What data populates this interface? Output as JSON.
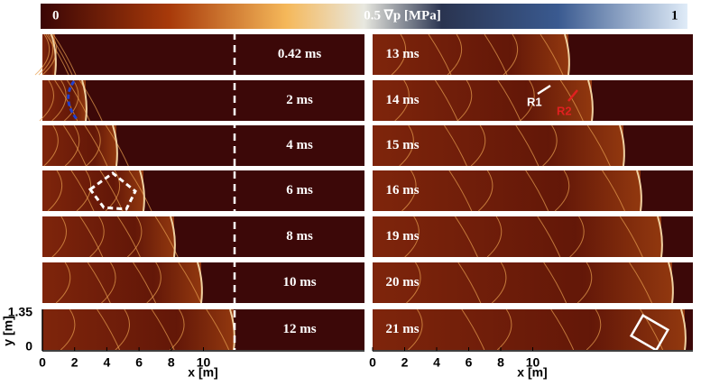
{
  "colorbar": {
    "min_label": "0",
    "mid_label": "0.5 ∇p [MPa]",
    "max_label": "1"
  },
  "left_panels": [
    {
      "time": "0.42 ms"
    },
    {
      "time": "2 ms"
    },
    {
      "time": "4 ms"
    },
    {
      "time": "6 ms"
    },
    {
      "time": "8 ms"
    },
    {
      "time": "10 ms"
    },
    {
      "time": "12 ms"
    }
  ],
  "right_panels": [
    {
      "time": "13 ms"
    },
    {
      "time": "14 ms"
    },
    {
      "time": "15 ms"
    },
    {
      "time": "16 ms"
    },
    {
      "time": "19 ms"
    },
    {
      "time": "20 ms"
    },
    {
      "time": "21 ms"
    }
  ],
  "annotations": {
    "r1": "R1",
    "r2": "R2"
  },
  "left_axis": {
    "x_ticks": [
      "0",
      "2",
      "4",
      "6",
      "8",
      "10"
    ],
    "x_label": "x [m]",
    "y_ticks": [
      "1.35",
      "0"
    ],
    "y_label": "y [m]"
  },
  "right_axis": {
    "x_ticks": [
      "0",
      "2",
      "4",
      "6",
      "8",
      "10"
    ],
    "x_label": "x [m]"
  }
}
